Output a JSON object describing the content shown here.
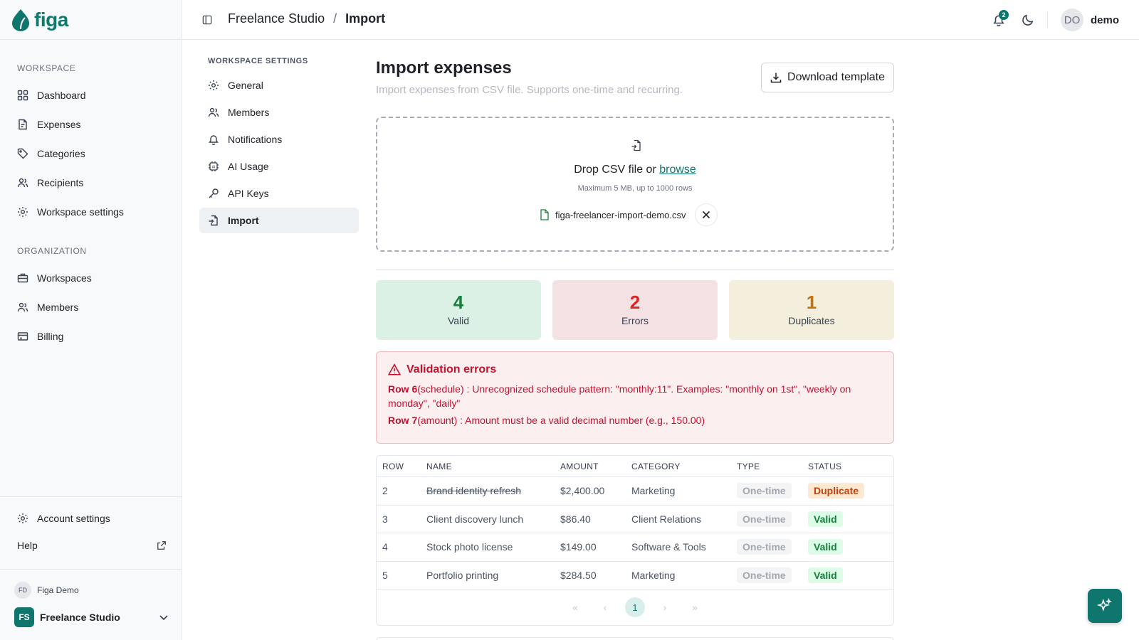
{
  "app": {
    "name": "figa"
  },
  "sidebar": {
    "workspace_label": "WORKSPACE",
    "workspace_items": [
      {
        "label": "Dashboard",
        "icon": "dashboard-icon"
      },
      {
        "label": "Expenses",
        "icon": "receipt-icon"
      },
      {
        "label": "Categories",
        "icon": "tag-icon"
      },
      {
        "label": "Recipients",
        "icon": "users-icon"
      },
      {
        "label": "Workspace settings",
        "icon": "gear-icon"
      }
    ],
    "organization_label": "ORGANIZATION",
    "organization_items": [
      {
        "label": "Workspaces",
        "icon": "briefcase-icon"
      },
      {
        "label": "Members",
        "icon": "users-icon"
      },
      {
        "label": "Billing",
        "icon": "credit-card-icon"
      }
    ],
    "account_settings": "Account settings",
    "help": "Help",
    "user": {
      "initials": "FD",
      "name": "Figa Demo"
    },
    "workspace": {
      "initials": "FS",
      "name": "Freelance Studio"
    }
  },
  "header": {
    "breadcrumb_parent": "Freelance Studio",
    "breadcrumb_sep": "/",
    "breadcrumb_current": "Import",
    "notification_count": "2",
    "user_initials": "DO",
    "user_name": "demo"
  },
  "settings_nav": {
    "label": "WORKSPACE SETTINGS",
    "items": [
      {
        "label": "General",
        "icon": "gear-icon",
        "active": false
      },
      {
        "label": "Members",
        "icon": "users-icon",
        "active": false
      },
      {
        "label": "Notifications",
        "icon": "bell-icon",
        "active": false
      },
      {
        "label": "AI Usage",
        "icon": "ai-chip-icon",
        "active": false
      },
      {
        "label": "API Keys",
        "icon": "key-icon",
        "active": false
      },
      {
        "label": "Import",
        "icon": "file-import-icon",
        "active": true
      }
    ]
  },
  "main": {
    "title": "Import expenses",
    "subtitle": "Import expenses from CSV file. Supports one-time and recurring.",
    "download_template": "Download template",
    "drop": {
      "text": "Drop CSV file or",
      "browse": "browse",
      "hint": "Maximum 5 MB, up to 1000 rows",
      "file_name": "figa-freelancer-import-demo.csv"
    },
    "stats": {
      "valid": {
        "value": "4",
        "label": "Valid",
        "color": "#15803d"
      },
      "errors": {
        "value": "2",
        "label": "Errors",
        "color": "#dc2626"
      },
      "duplicates": {
        "value": "1",
        "label": "Duplicates",
        "color": "#c2740c"
      }
    },
    "validation": {
      "title": "Validation errors",
      "errors": [
        {
          "row": "Row 6",
          "text": "(schedule) : Unrecognized schedule pattern: \"monthly:11\". Examples: \"monthly on 1st\", \"weekly on monday\", \"daily\""
        },
        {
          "row": "Row 7",
          "text": "(amount) : Amount must be a valid decimal number (e.g., 150.00)"
        }
      ]
    },
    "table": {
      "headers": [
        "ROW",
        "NAME",
        "AMOUNT",
        "CATEGORY",
        "TYPE",
        "STATUS"
      ],
      "rows": [
        {
          "row": "2",
          "name": "Brand identity refresh",
          "amount": "$2,400.00",
          "category": "Marketing",
          "type": "One-time",
          "status": "Duplicate"
        },
        {
          "row": "3",
          "name": "Client discovery lunch",
          "amount": "$86.40",
          "category": "Client Relations",
          "type": "One-time",
          "status": "Valid"
        },
        {
          "row": "4",
          "name": "Stock photo license",
          "amount": "$149.00",
          "category": "Software & Tools",
          "type": "One-time",
          "status": "Valid"
        },
        {
          "row": "5",
          "name": "Portfolio printing",
          "amount": "$284.50",
          "category": "Marketing",
          "type": "One-time",
          "status": "Valid"
        }
      ],
      "pagination": {
        "first": "«",
        "prev": "‹",
        "current": "1",
        "next": "›",
        "last": "»"
      }
    }
  },
  "colors": {
    "brand": "#0f766e",
    "error": "#c8102e"
  }
}
